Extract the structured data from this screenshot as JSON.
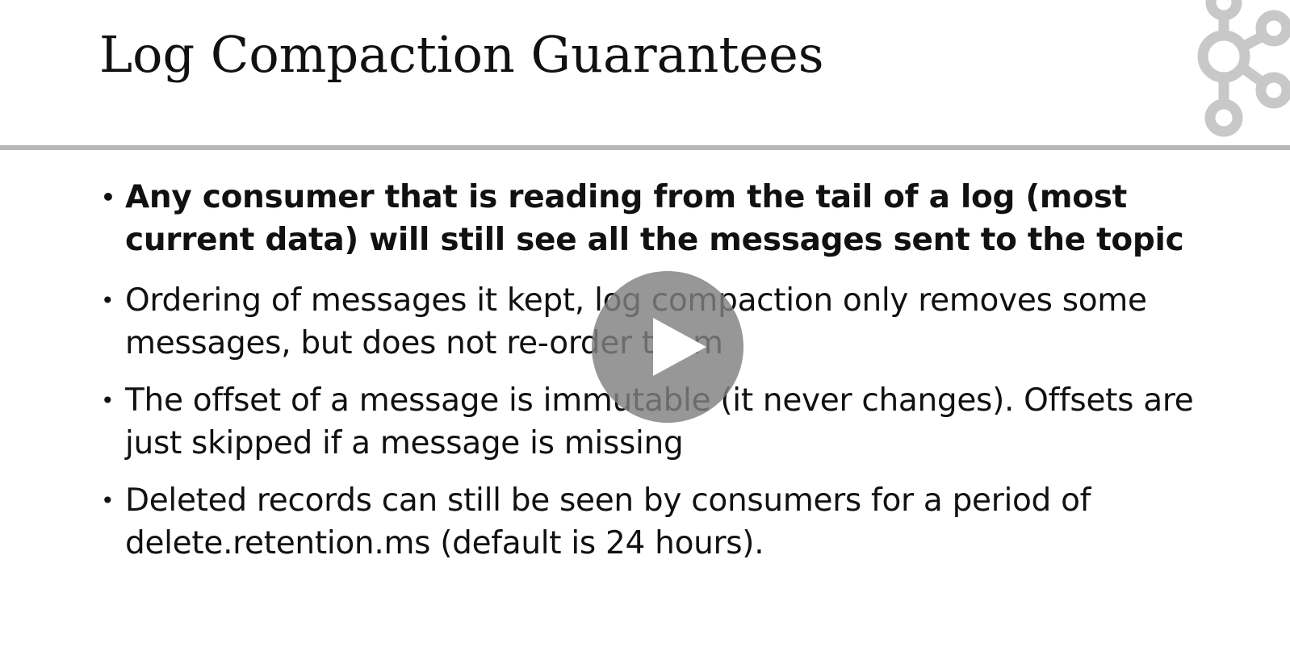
{
  "slide": {
    "title": "Log Compaction Guarantees",
    "bullets": [
      {
        "text": "Any consumer that is reading from the tail of a log (most current data) will still see all the messages sent to the topic",
        "bold": true
      },
      {
        "text": "Ordering of messages it kept, log compaction only removes some messages, but does not re-order them",
        "bold": false
      },
      {
        "text": "The offset of a message is immutable (it never changes). Offsets are just skipped if a message is missing",
        "bold": false
      },
      {
        "text": "Deleted records can still be seen by consumers for a period of delete.retention.ms (default is 24 hours).",
        "bold": false
      }
    ],
    "bullet_glyph": "•"
  },
  "video": {
    "play_icon": "play-icon"
  },
  "colors": {
    "text": "#111111",
    "rule": "#b8b8b8",
    "logo": "#c8c8c8",
    "play_overlay": "#808080"
  }
}
